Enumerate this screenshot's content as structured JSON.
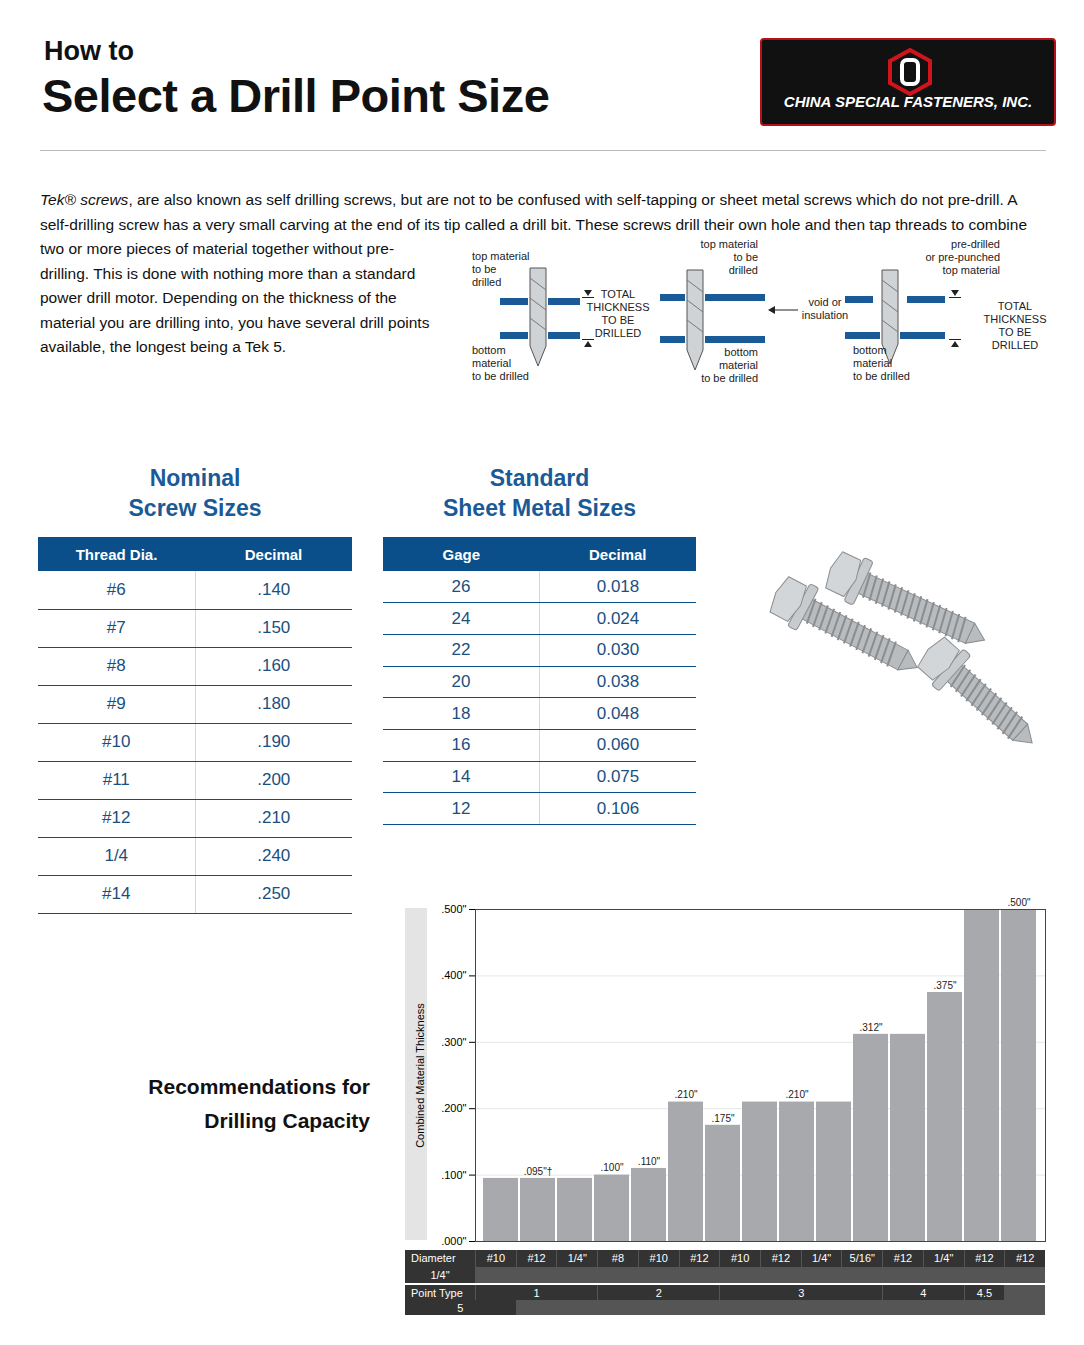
{
  "header": {
    "kicker": "How to",
    "title": "Select a Drill Point Size",
    "logo": "CHINA SPECIAL FASTENERS, INC."
  },
  "intro": {
    "lead": "Tek® screws",
    "text": ", are also known as self drilling screws, but are not to be confused with self-tapping or sheet metal screws which do not pre-drill. A self-drilling screw has a very small carving at the end of its tip called a drill bit. These screws drill their own hole and then tap threads to combine two or more pieces of material together without pre-drilling. This is done with nothing more than a standard power drill motor. Depending on the thickness of the material you are drilling into, you have several drill points available, the longest being a Tek 5."
  },
  "diagram": [
    {
      "top": [
        "top material",
        "to be",
        "drilled"
      ],
      "middle": [
        "TOTAL",
        "THICKNESS",
        "TO BE",
        "DRILLED"
      ],
      "bottom": [
        "bottom",
        "material",
        "to be drilled"
      ]
    },
    {
      "top": [
        "top material",
        "to be",
        "drilled"
      ],
      "middle": [
        "void or",
        "insulation"
      ],
      "bottom": [
        "bottom",
        "material",
        "to be drilled"
      ]
    },
    {
      "top": [
        "pre-drilled",
        "or pre-punched",
        "top material"
      ],
      "middle": [
        "TOTAL",
        "THICKNESS",
        "TO BE",
        "DRILLED"
      ],
      "bottom": [
        "bottom",
        "material",
        "to be drilled"
      ]
    }
  ],
  "tables": [
    {
      "title": [
        "Nominal",
        "Screw Sizes"
      ],
      "columns": [
        "Thread Dia.",
        "Decimal"
      ],
      "rows": [
        [
          "#6",
          ".140"
        ],
        [
          "#7",
          ".150"
        ],
        [
          "#8",
          ".160"
        ],
        [
          "#9",
          ".180"
        ],
        [
          "#10",
          ".190"
        ],
        [
          "#11",
          ".200"
        ],
        [
          "#12",
          ".210"
        ],
        [
          "1/4",
          ".240"
        ],
        [
          "#14",
          ".250"
        ]
      ]
    },
    {
      "title": [
        "Standard",
        "Sheet Metal Sizes"
      ],
      "columns": [
        "Gage",
        "Decimal"
      ],
      "rows": [
        [
          "26",
          "0.018"
        ],
        [
          "24",
          "0.024"
        ],
        [
          "22",
          "0.030"
        ],
        [
          "20",
          "0.038"
        ],
        [
          "18",
          "0.048"
        ],
        [
          "16",
          "0.060"
        ],
        [
          "14",
          "0.075"
        ],
        [
          "12",
          "0.106"
        ]
      ]
    }
  ],
  "chart_data": {
    "type": "bar",
    "title": [
      "Recommendations for",
      "Drilling Capacity"
    ],
    "y_label": "Combined Material Thickness",
    "x_row_label": "Diameter",
    "point_type_label": "Point Type",
    "categories": [
      "#10",
      "#12",
      "1/4\"",
      "#8",
      "#10",
      "#12",
      "#10",
      "#12",
      "1/4\"",
      "5/16\"",
      "#12",
      "1/4\"",
      "#12",
      "#12",
      "1/4\""
    ],
    "point_type": [
      "1",
      "1",
      "1",
      "2",
      "2",
      "2",
      "3",
      "3",
      "3",
      "3",
      "4",
      "4",
      "4.5",
      "5",
      "5"
    ],
    "values": [
      0.095,
      0.095,
      0.095,
      0.1,
      0.11,
      0.21,
      0.175,
      0.21,
      0.21,
      0.21,
      0.312,
      0.312,
      0.375,
      0.5,
      0.5
    ],
    "value_labels": [
      null,
      ".095\"†",
      null,
      ".100\"",
      ".110\"",
      ".210\"",
      ".175\"",
      null,
      ".210\"",
      null,
      ".312\"",
      null,
      ".375\"",
      null,
      ".500\""
    ],
    "color": "#a7a9ac",
    "ylim": [
      0,
      0.5
    ],
    "yticks": [
      {
        "value": 0,
        "label": ".000\""
      },
      {
        "value": 0.1,
        "label": ".100\""
      },
      {
        "value": 0.2,
        "label": ".200\""
      },
      {
        "value": 0.3,
        "label": ".300\""
      },
      {
        "value": 0.4,
        "label": ".400\""
      },
      {
        "value": 0.5,
        "label": ".500\""
      }
    ],
    "grid": true,
    "data_labels": true
  }
}
